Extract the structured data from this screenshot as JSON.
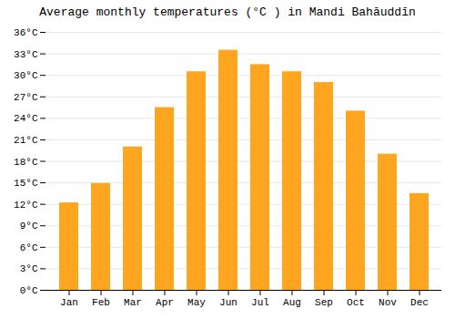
{
  "chart_data": {
    "type": "bar",
    "title": "Average monthly temperatures (°C ) in Mandi Bahāuddīn",
    "categories": [
      "Jan",
      "Feb",
      "Mar",
      "Apr",
      "May",
      "Jun",
      "Jul",
      "Aug",
      "Sep",
      "Oct",
      "Nov",
      "Dec"
    ],
    "values": [
      12.2,
      14.9,
      20.0,
      25.5,
      30.5,
      33.5,
      31.5,
      30.5,
      29.0,
      25.0,
      19.0,
      13.5
    ],
    "color": "#FFA520",
    "ylim": [
      0,
      36
    ],
    "yticks": [
      {
        "value": 0,
        "label": "0°C"
      },
      {
        "value": 3,
        "label": "3°C"
      },
      {
        "value": 6,
        "label": "6°C"
      },
      {
        "value": 9,
        "label": "9°C"
      },
      {
        "value": 12,
        "label": "12°C"
      },
      {
        "value": 15,
        "label": "15°C"
      },
      {
        "value": 18,
        "label": "18°C"
      },
      {
        "value": 21,
        "label": "21°C"
      },
      {
        "value": 24,
        "label": "24°C"
      },
      {
        "value": 27,
        "label": "27°C"
      },
      {
        "value": 30,
        "label": "30°C"
      },
      {
        "value": 33,
        "label": "33°C"
      },
      {
        "value": 36,
        "label": "36°C"
      }
    ],
    "grid": true
  }
}
